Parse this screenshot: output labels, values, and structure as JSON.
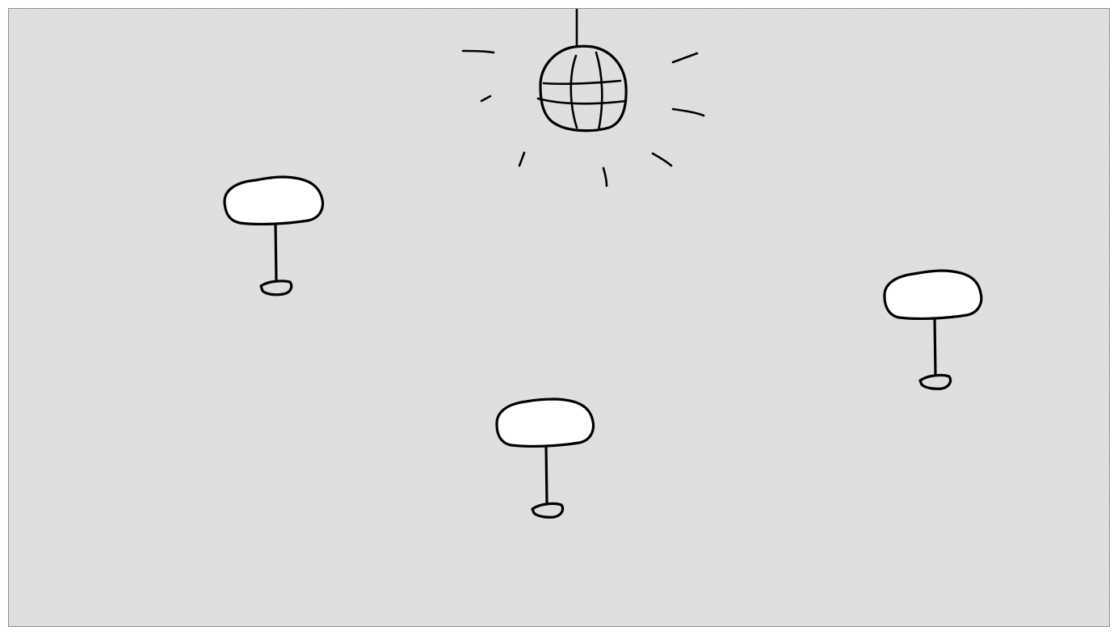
{
  "scene": {
    "background_color": "#dcdcdc",
    "frame_border_color": "#8e8e8e",
    "ink_color": "#000000",
    "tabletop_color": "#ffffff",
    "objects": [
      {
        "name": "disco-ball",
        "kind": "disco ball",
        "interactable": true
      },
      {
        "name": "table-left",
        "kind": "round table",
        "interactable": true
      },
      {
        "name": "table-center",
        "kind": "round table",
        "interactable": true
      },
      {
        "name": "table-right",
        "kind": "round table",
        "interactable": true
      }
    ]
  }
}
